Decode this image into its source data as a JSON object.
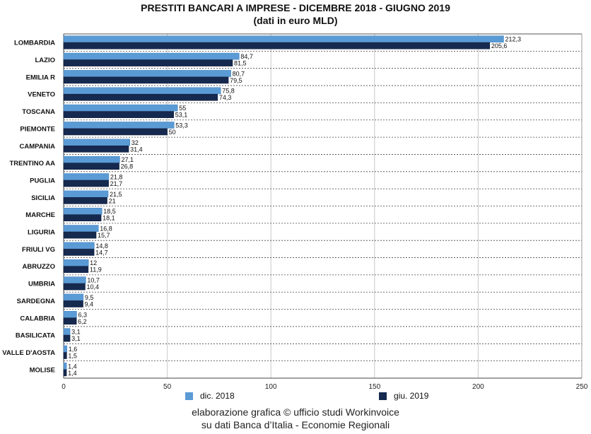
{
  "chart_data": {
    "type": "bar",
    "orientation": "horizontal",
    "title": "PRESTITI BANCARI A IMPRESE - DICEMBRE 2018 - GIUGNO 2019",
    "subtitle": "(dati in euro MLD)",
    "categories": [
      "LOMBARDIA",
      "LAZIO",
      "EMILIA R",
      "VENETO",
      "TOSCANA",
      "PIEMONTE",
      "CAMPANIA",
      "TRENTINO AA",
      "PUGLIA",
      "SICILIA",
      "MARCHE",
      "LIGURIA",
      "FRIULI VG",
      "ABRUZZO",
      "UMBRIA",
      "SARDEGNA",
      "CALABRIA",
      "BASILICATA",
      "VALLE D'AOSTA",
      "MOLISE"
    ],
    "series": [
      {
        "name": "dic. 2018",
        "color": "#5b9bd5",
        "values": [
          212.3,
          84.7,
          80.7,
          75.8,
          55,
          53.3,
          32,
          27.1,
          21.8,
          21.5,
          18.5,
          16.8,
          14.8,
          12,
          10.7,
          9.5,
          6.3,
          3.1,
          1.6,
          1.4
        ],
        "labels": [
          "212,3",
          "84,7",
          "80,7",
          "75,8",
          "55",
          "53,3",
          "32",
          "27,1",
          "21,8",
          "21,5",
          "18,5",
          "16,8",
          "14,8",
          "12",
          "10,7",
          "9,5",
          "6,3",
          "3,1",
          "1,6",
          "1,4"
        ]
      },
      {
        "name": "giu. 2019",
        "color": "#16294f",
        "values": [
          205.6,
          81.5,
          79.5,
          74.3,
          53.1,
          50,
          31.4,
          26.8,
          21.7,
          21,
          18.1,
          15.7,
          14.7,
          11.9,
          10.4,
          9.4,
          6.2,
          3.1,
          1.5,
          1.4
        ],
        "labels": [
          "205,6",
          "81,5",
          "79,5",
          "74,3",
          "53,1",
          "50",
          "31,4",
          "26,8",
          "21,7",
          "21",
          "18,1",
          "15,7",
          "14,7",
          "11,9",
          "10,4",
          "9,4",
          "6,2",
          "3,1",
          "1,5",
          "1,4"
        ]
      }
    ],
    "xlim": [
      0,
      250
    ],
    "xticks": [
      "0",
      "50",
      "100",
      "150",
      "200",
      "250"
    ],
    "xtick_values": [
      0,
      50,
      100,
      150,
      200,
      250
    ],
    "grid": true,
    "legend_position": "bottom"
  },
  "footer": {
    "line1": "elaborazione grafica © ufficio studi Workinvoice",
    "line2": "su dati Banca d’Italia - Economie Regionali"
  }
}
